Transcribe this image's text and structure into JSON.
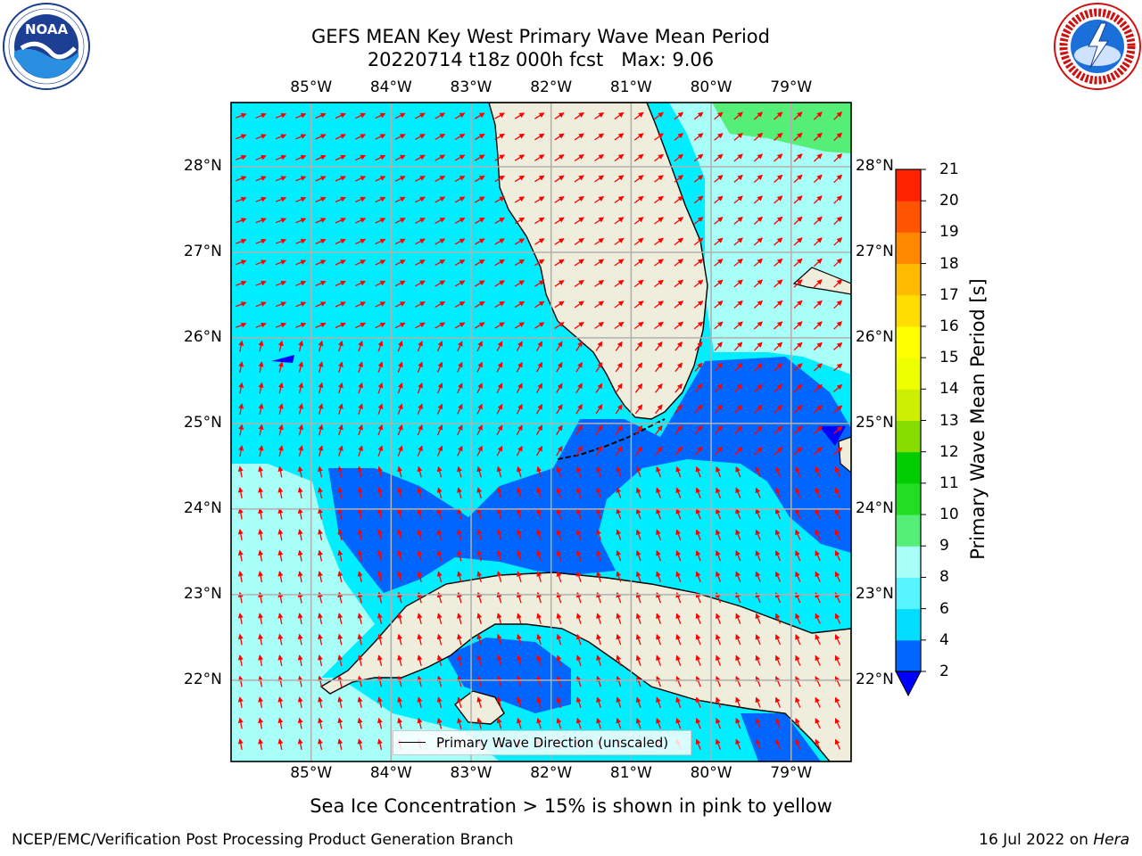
{
  "header": {
    "title_line1": "GEFS MEAN Key West Primary Wave Mean Period",
    "title_line2": "20220714 t18z 000h fcst   Max: 9.06"
  },
  "logos": {
    "left": {
      "name": "noaa-logo",
      "text": "NOAA",
      "ring_text": "NATIONAL OCEANIC AND ATMOSPHERIC ADMINISTRATION · U.S. DEPARTMENT OF COMMERCE"
    },
    "right": {
      "name": "nws-logo",
      "ring_text": "NATIONAL WEATHER SERVICE"
    }
  },
  "map": {
    "lon_labels": [
      "85°W",
      "84°W",
      "83°W",
      "82°W",
      "81°W",
      "80°W",
      "79°W"
    ],
    "lat_labels": [
      "28°N",
      "27°N",
      "26°N",
      "25°N",
      "24°N",
      "23°N",
      "22°N"
    ],
    "lon_values": [
      -85,
      -84,
      -83,
      -82,
      -81,
      -80,
      -79
    ],
    "lat_values": [
      28,
      27,
      26,
      25,
      24,
      23,
      22
    ],
    "extent": {
      "lon_min": -86.0,
      "lon_max": -78.25,
      "lat_min": 21.05,
      "lat_max": 28.75
    },
    "legend_label": "Primary Wave Direction (unscaled)",
    "arrow_color": "#ff0000",
    "land_color": "#efeddc",
    "grid_color": "#b0b0b0"
  },
  "colorbar": {
    "title": "Primary Wave Mean Period [s]",
    "tick_labels": [
      "2",
      "4",
      "6",
      "8",
      "9",
      "10",
      "11",
      "12",
      "13",
      "14",
      "15",
      "16",
      "17",
      "18",
      "19",
      "20",
      "21"
    ],
    "levels": [
      2,
      4,
      6,
      8,
      9,
      10,
      11,
      12,
      13,
      14,
      15,
      16,
      17,
      18,
      19,
      20,
      21
    ],
    "colors": [
      "#0066ff",
      "#00ddff",
      "#55f4ff",
      "#a8fff8",
      "#55ee77",
      "#22dd22",
      "#00cc00",
      "#88dd00",
      "#ccee00",
      "#eeff00",
      "#ffff00",
      "#ffdd00",
      "#ffbb00",
      "#ff8800",
      "#ff5500",
      "#ff2200",
      "#ff0000"
    ],
    "under_color": "#0000ff",
    "extend": "min"
  },
  "footer": {
    "sea_ice_note": "Sea Ice Concentration > 15% is shown in pink to yellow",
    "credit": "NCEP/EMC/Verification Post Processing Product Generation Branch",
    "date_prefix": "16 Jul 2022 on ",
    "date_machine": "Hera"
  }
}
